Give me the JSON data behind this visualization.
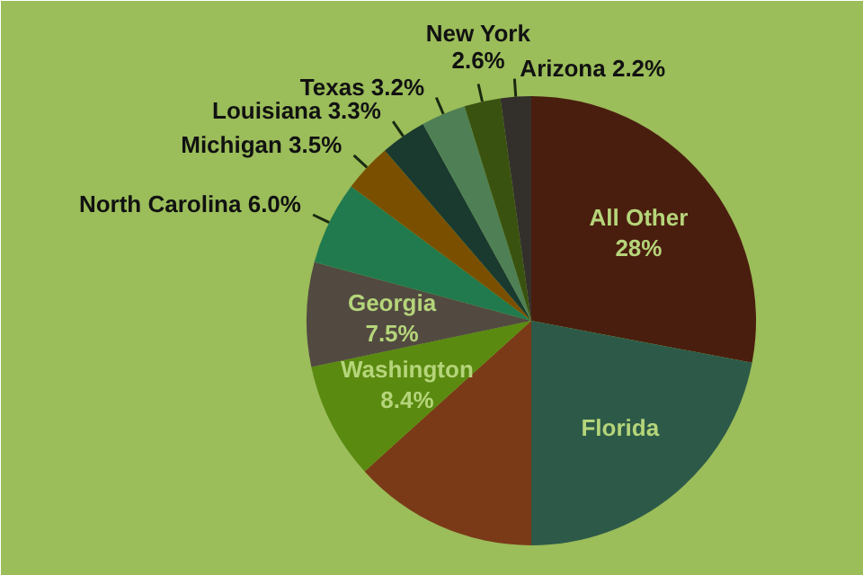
{
  "chart_data": {
    "type": "pie",
    "categories": [
      "All Other",
      "Florida",
      null,
      "Washington",
      "Georgia",
      "North Carolina",
      "Michigan",
      "Louisiana",
      "Texas",
      "New York",
      "Arizona"
    ],
    "values": [
      28,
      22,
      13.3,
      8.4,
      7.5,
      6.0,
      3.5,
      3.3,
      3.2,
      2.6,
      2.2
    ],
    "value_labels": [
      "28%",
      null,
      null,
      "8.4%",
      "7.5%",
      "6.0%",
      "3.5%",
      "3.3%",
      "3.2%",
      "2.6%",
      "2.2%"
    ],
    "colors": [
      "#4a1e0e",
      "#2d5a48",
      "#7a3a18",
      "#5a8a10",
      "#524a40",
      "#217a4d",
      "#7a5000",
      "#1a3a30",
      "#4f7f55",
      "#3a5210",
      "#33302c"
    ]
  }
}
